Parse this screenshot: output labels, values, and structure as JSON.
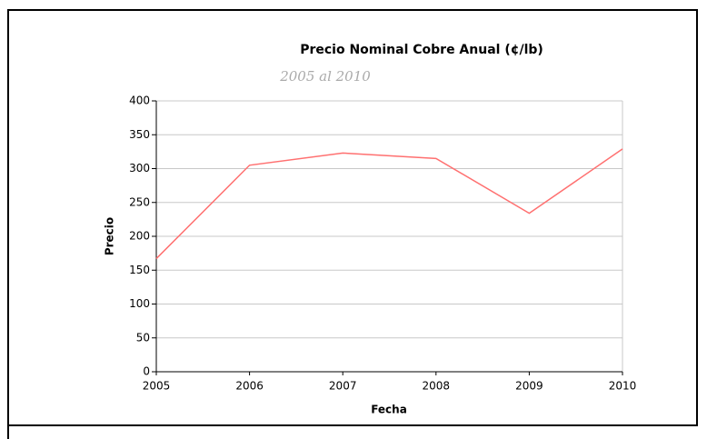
{
  "chart_data": {
    "type": "line",
    "title": "Precio Nominal Cobre Anual (¢/lb)",
    "subtitle": "2005 al 2010",
    "x_label": "Fecha",
    "y_label": "Precio",
    "x": [
      2005,
      2006,
      2007,
      2008,
      2009,
      2010
    ],
    "series": [
      {
        "name": "Precio",
        "color": "#ff7070",
        "values": [
          167,
          305,
          323,
          315,
          234,
          329
        ]
      }
    ],
    "xlim": [
      2005,
      2010
    ],
    "xticks": [
      2005,
      2006,
      2007,
      2008,
      2009,
      2010
    ],
    "ylim": [
      0,
      400
    ],
    "yticks": [
      0,
      50,
      100,
      150,
      200,
      250,
      300,
      350,
      400
    ],
    "grid": true
  }
}
